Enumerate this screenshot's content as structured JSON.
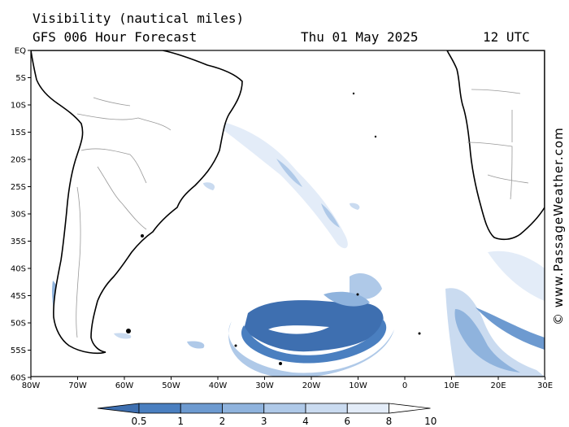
{
  "header": {
    "title": "Visibility (nautical miles)",
    "subtitle": "GFS 006 Hour Forecast",
    "date": "Thu 01 May 2025",
    "time": "12 UTC"
  },
  "map": {
    "region": "South Atlantic",
    "lat_labels": [
      "EQ",
      "5S",
      "10S",
      "15S",
      "20S",
      "25S",
      "30S",
      "35S",
      "40S",
      "45S",
      "50S",
      "55S",
      "60S"
    ],
    "lon_labels": [
      "80W",
      "70W",
      "60W",
      "50W",
      "40W",
      "30W",
      "20W",
      "10W",
      "0",
      "10E",
      "20E",
      "30E"
    ],
    "land_color": "#ffffff",
    "coast_color": "#000000",
    "border_color": "#999999"
  },
  "legend": {
    "labels": [
      "0.5",
      "1",
      "2",
      "3",
      "4",
      "6",
      "8",
      "10"
    ],
    "colors": [
      "#3e6fb0",
      "#4a7fc0",
      "#6d9ad0",
      "#8fb3dd",
      "#afc9e8",
      "#cadbf0",
      "#e3ecf8",
      "#ffffff"
    ]
  },
  "credit": "© www.PassageWeather.com"
}
